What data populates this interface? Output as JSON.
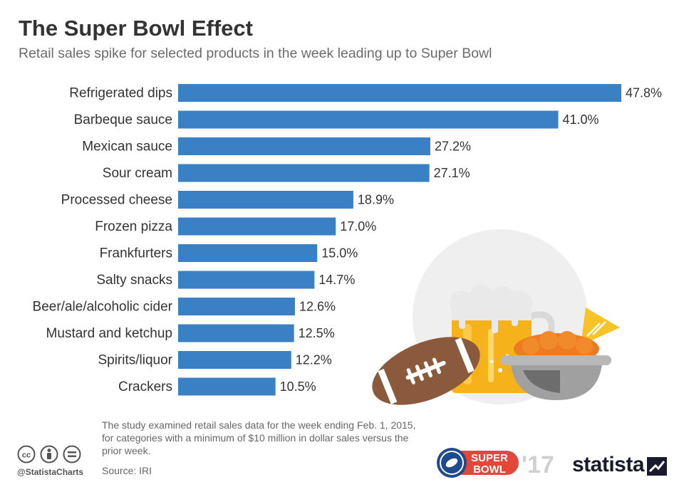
{
  "header": {
    "title": "The Super Bowl Effect",
    "subtitle": "Retail sales spike for selected products in the week leading up to Super Bowl"
  },
  "chart_data": {
    "type": "bar",
    "orientation": "horizontal",
    "categories": [
      "Refrigerated dips",
      "Barbeque sauce",
      "Mexican sauce",
      "Sour cream",
      "Processed cheese",
      "Frozen pizza",
      "Frankfurters",
      "Salty snacks",
      "Beer/ale/alcoholic cider",
      "Mustard and ketchup",
      "Spirits/liquor",
      "Crackers"
    ],
    "values": [
      47.8,
      41.0,
      27.2,
      27.1,
      18.9,
      17.0,
      15.0,
      14.7,
      12.6,
      12.5,
      12.2,
      10.5
    ],
    "value_labels": [
      "47.8%",
      "41.0%",
      "27.2%",
      "27.1%",
      "18.9%",
      "17.0%",
      "15.0%",
      "14.7%",
      "12.6%",
      "12.5%",
      "12.2%",
      "10.5%"
    ],
    "xlim": [
      0,
      47.8
    ],
    "grid": false,
    "bar_color": "#3a80c4"
  },
  "footer": {
    "note": "The study examined retail sales data for the week ending Feb. 1, 2015, for categories with a minimum of $10 million in dollar sales versus the prior week.",
    "source": "Source: IRI",
    "handle": "@StatistaCharts",
    "sb_line1": "SUPER",
    "sb_line2": "BOWL",
    "sb_year": "'17",
    "brand": "statista"
  },
  "icons": [
    "cc-icon",
    "by-icon",
    "nd-icon",
    "football-icon",
    "beer-mug-icon",
    "chips-bowl-icon",
    "nacho-chip-icon",
    "super-bowl-logo-icon",
    "statista-mark-icon"
  ]
}
